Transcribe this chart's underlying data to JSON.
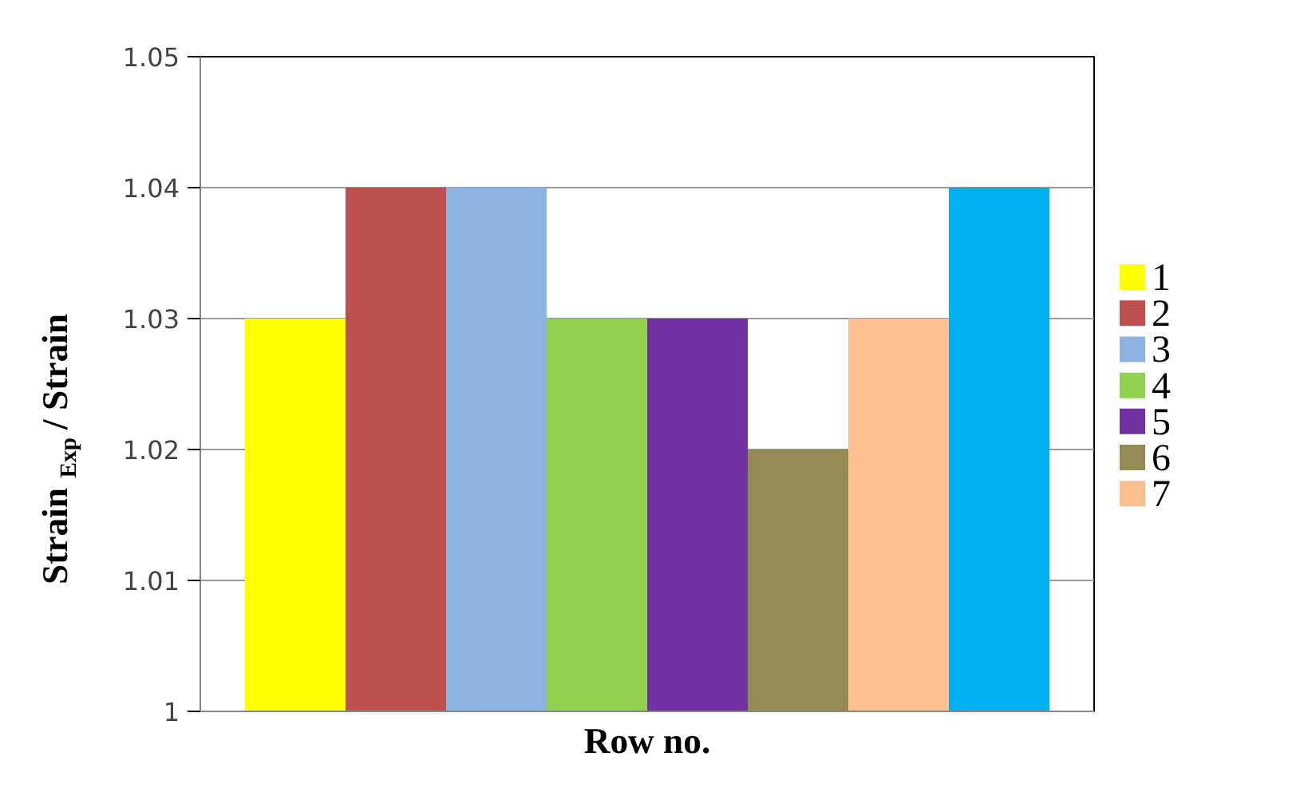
{
  "chart_data": {
    "type": "bar",
    "xlabel": "Row no.",
    "ylabel": "Strain$_{Exp}$ / Strain",
    "categories": [
      null
    ],
    "series": [
      {
        "name": "1",
        "color": "#ffff00",
        "values": [
          1.03
        ]
      },
      {
        "name": "2",
        "color": "#c0504d",
        "values": [
          1.04
        ]
      },
      {
        "name": "3",
        "color": "#8db3e2",
        "values": [
          1.04
        ]
      },
      {
        "name": "4",
        "color": "#92d050",
        "values": [
          1.03
        ]
      },
      {
        "name": "5",
        "color": "#7030a0",
        "values": [
          1.03
        ]
      },
      {
        "name": "6",
        "color": "#948a54",
        "values": [
          1.02
        ]
      },
      {
        "name": "7",
        "color": "#fac090",
        "values": [
          1.03
        ]
      },
      {
        "color": "#00b0f0",
        "values": [
          1.04
        ]
      }
    ],
    "ylim": [
      1,
      1.05
    ],
    "yticks": [
      1,
      1.01,
      1.02,
      1.03,
      1.04,
      1.05
    ],
    "grid": "y",
    "legend": "right",
    "tick_labels": "y"
  }
}
